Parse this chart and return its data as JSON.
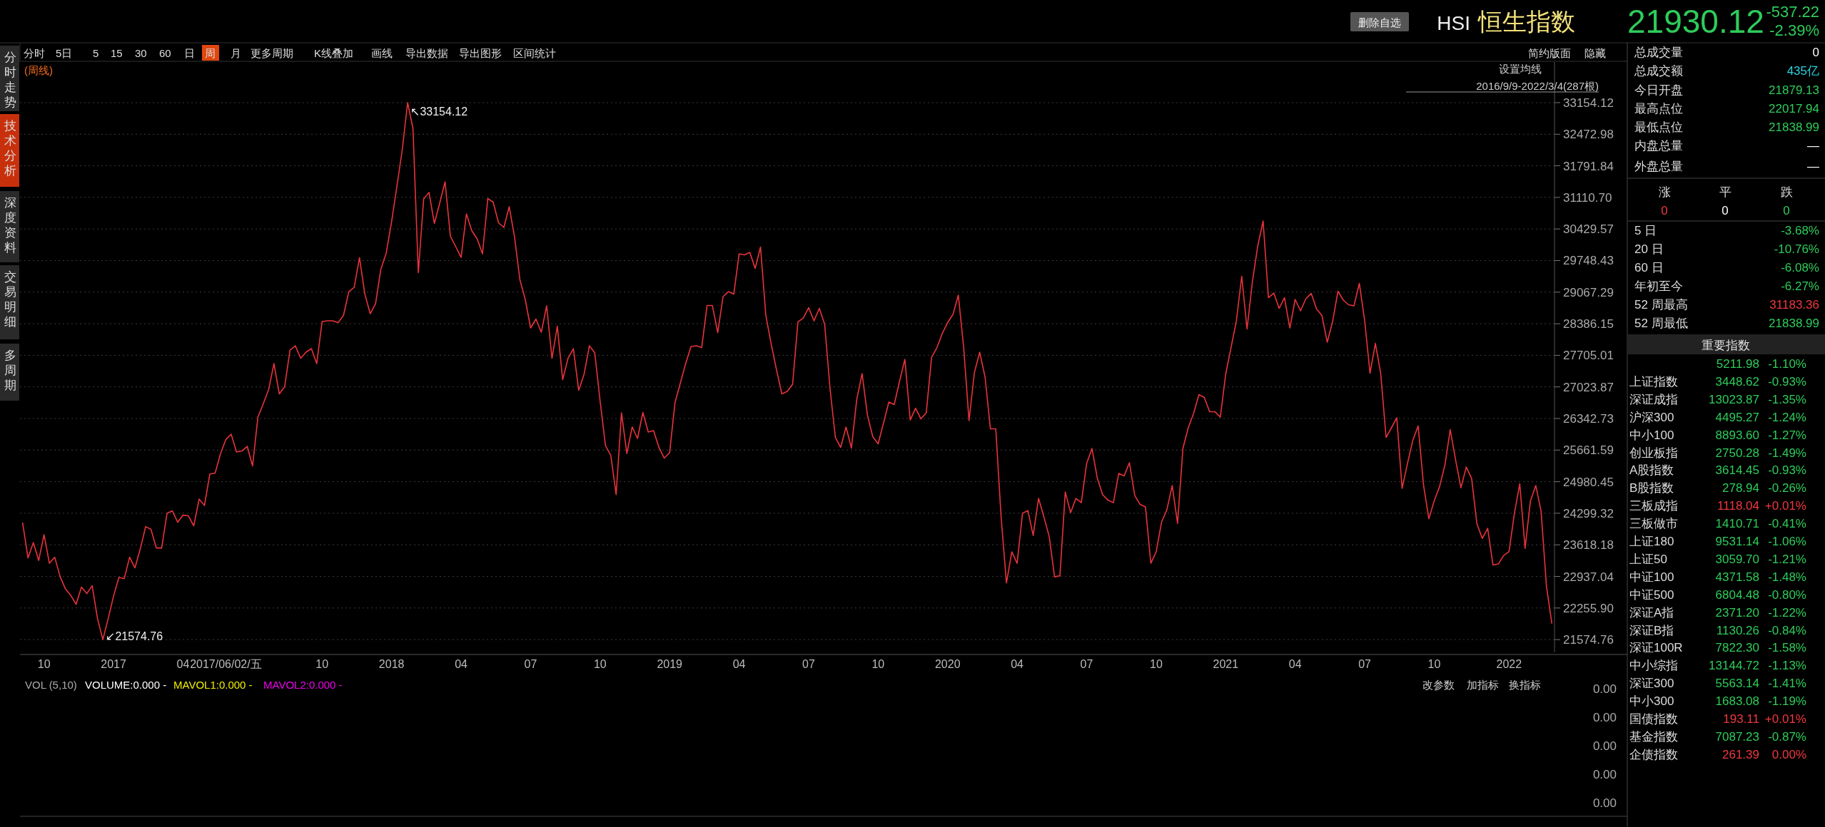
{
  "chart_data": [
    {
      "type": "line",
      "color": "#e8333b",
      "grid": "y",
      "categories": [
        null,
        null,
        null,
        null,
        "10",
        null,
        null,
        null,
        null,
        null,
        null,
        null,
        null,
        null,
        null,
        null,
        null,
        "2017",
        null,
        null,
        null,
        null,
        null,
        null,
        null,
        null,
        null,
        null,
        null,
        null,
        "04",
        null,
        null,
        null,
        null,
        null,
        null,
        null,
        "2017/06/02/五",
        null,
        null,
        null,
        null,
        null,
        null,
        null,
        null,
        null,
        null,
        null,
        null,
        null,
        null,
        null,
        null,
        null,
        "10",
        null,
        null,
        null,
        null,
        null,
        null,
        null,
        null,
        null,
        null,
        null,
        null,
        "2018",
        null,
        null,
        null,
        null,
        null,
        null,
        null,
        null,
        null,
        null,
        null,
        null,
        "04",
        null,
        null,
        null,
        null,
        null,
        null,
        null,
        null,
        null,
        null,
        null,
        null,
        "07",
        null,
        null,
        null,
        null,
        null,
        null,
        null,
        null,
        null,
        null,
        null,
        null,
        "10",
        null,
        null,
        null,
        null,
        null,
        null,
        null,
        null,
        null,
        null,
        null,
        null,
        "2019",
        null,
        null,
        null,
        null,
        null,
        null,
        null,
        null,
        null,
        null,
        null,
        null,
        "04",
        null,
        null,
        null,
        null,
        null,
        null,
        null,
        null,
        null,
        null,
        null,
        null,
        "07",
        null,
        null,
        null,
        null,
        null,
        null,
        null,
        null,
        null,
        null,
        null,
        null,
        "10",
        null,
        null,
        null,
        null,
        null,
        null,
        null,
        null,
        null,
        null,
        null,
        null,
        "2020",
        null,
        null,
        null,
        null,
        null,
        null,
        null,
        null,
        null,
        null,
        null,
        null,
        "04",
        null,
        null,
        null,
        null,
        null,
        null,
        null,
        null,
        null,
        null,
        null,
        null,
        "07",
        null,
        null,
        null,
        null,
        null,
        null,
        null,
        null,
        null,
        null,
        null,
        null,
        "10",
        null,
        null,
        null,
        null,
        null,
        null,
        null,
        null,
        null,
        null,
        null,
        null,
        "2021",
        null,
        null,
        null,
        null,
        null,
        null,
        null,
        null,
        null,
        null,
        null,
        null,
        "04",
        null,
        null,
        null,
        null,
        null,
        null,
        null,
        null,
        null,
        null,
        null,
        null,
        "07",
        null,
        null,
        null,
        null,
        null,
        null,
        null,
        null,
        null,
        null,
        null,
        null,
        "10",
        null,
        null,
        null,
        null,
        null,
        null,
        null,
        null,
        null,
        null,
        null,
        null,
        null,
        "2022",
        null,
        null,
        null,
        null,
        null,
        null,
        null,
        null
      ],
      "values": [
        24089,
        23336,
        23666,
        23282,
        23836,
        23221,
        23351,
        22936,
        22667,
        22529,
        22337,
        22705,
        22567,
        22736,
        22029,
        21574.76,
        22029,
        22513,
        22913,
        22890,
        23351,
        23121,
        23528,
        24012,
        23951,
        23551,
        23551,
        24297,
        24351,
        24105,
        24258,
        24243,
        24028,
        24604,
        24466,
        25143,
        25166,
        25581,
        25888,
        26004,
        25619,
        25642,
        25742,
        25320,
        26373,
        26657,
        26965,
        27526,
        26873,
        27026,
        27818,
        27911,
        27641,
        27772,
        27849,
        27526,
        28433,
        28448,
        28448,
        28410,
        28564,
        29079,
        29171,
        29810,
        29025,
        28602,
        28818,
        29564,
        29910,
        30586,
        31355,
        32139,
        33154.12,
        32600,
        29487,
        31078,
        31217,
        30548,
        30986,
        31447,
        30271,
        30048,
        29817,
        30755,
        30394,
        30217,
        29894,
        31086,
        31009,
        30563,
        30463,
        30909,
        30256,
        29333,
        28910,
        28295,
        28487,
        28202,
        28772,
        27641,
        28333,
        27180,
        27641,
        27849,
        26949,
        27296,
        27911,
        27757,
        26719,
        25758,
        25550,
        24704,
        26465,
        25589,
        26158,
        25912,
        26473,
        26050,
        26081,
        25719,
        25489,
        25604,
        26680,
        27103,
        27526,
        27895,
        27911,
        27872,
        28779,
        28779,
        28195,
        28972,
        29079,
        29025,
        29894,
        29871,
        29925,
        29579,
        30040,
        28564,
        27949,
        27387,
        26873,
        26926,
        27080,
        28425,
        28510,
        28733,
        28448,
        28718,
        28372,
        26988,
        25935,
        25719,
        26158,
        25704,
        26757,
        27311,
        26411,
        25950,
        25796,
        26242,
        26696,
        26642,
        27142,
        27618,
        26311,
        26565,
        26334,
        26465,
        27664,
        27872,
        28179,
        28410,
        28587,
        29002,
        27872,
        26296,
        27334,
        27772,
        27234,
        26119,
        26119,
        24220,
        22797,
        23466,
        23221,
        24297,
        24358,
        23820,
        24620,
        24220,
        23797,
        22928,
        22951,
        24758,
        24312,
        24620,
        24527,
        25373,
        25696,
        25050,
        24697,
        24581,
        24527,
        25158,
        25104,
        25389,
        24681,
        24489,
        24435,
        23221,
        23466,
        24105,
        24374,
        24896,
        24082,
        25696,
        26143,
        26450,
        26857,
        26796,
        26488,
        26488,
        26373,
        27296,
        27872,
        28448,
        29410,
        28272,
        29295,
        30063,
        30601,
        28948,
        29048,
        28718,
        28948,
        28295,
        28910,
        28664,
        28925,
        29040,
        28702,
        28564,
        27987,
        28433,
        29087,
        28895,
        28795,
        28772,
        29256,
        28448,
        27319,
        27964,
        27311,
        25935,
        26143,
        26358,
        24835,
        25373,
        25873,
        26181,
        24912,
        24181,
        24566,
        24873,
        25335,
        26104,
        25450,
        24850,
        25296,
        25050,
        24066,
        23758,
        23974,
        23182,
        23205,
        23389,
        23474,
        24297,
        24935,
        23543,
        24566,
        24896,
        24335,
        22721,
        21930.12
      ],
      "ylim": [
        21300,
        34030
      ],
      "yticks": [
        21574.76,
        {
          "value": 22255.9,
          "label": "22255.90"
        },
        22937.04,
        23618.18,
        24299.32,
        24980.45,
        25661.59,
        26342.73,
        27023.87,
        27705.01,
        28386.15,
        29067.29,
        29748.43,
        30429.57,
        {
          "value": 31110.7,
          "label": "31110.70"
        },
        31791.84,
        32472.98,
        33154.12
      ],
      "annotations": [
        "↖33154.12",
        "↙21574.76",
        "(周线)",
        "设置均线",
        "2016/9/9-2022/3/4(287根)"
      ]
    },
    {
      "type": "other",
      "title": "VOL (5,10)",
      "annotations": [
        "VOLUME:0.000 -",
        "MAVOL1:0.000 -",
        "MAVOL2:0.000 -",
        "改参数",
        "加指标",
        "换指标",
        "0.00",
        "0.00",
        "0.00",
        "0.00",
        "0.00"
      ]
    },
    {
      "type": "other",
      "title": "恒生指数",
      "subtitle": "HSI",
      "annotations": [
        "删除自选",
        "21930.12",
        "-537.22",
        "-2.39%"
      ]
    },
    {
      "type": "other",
      "annotations": [
        "分时",
        "5日",
        "5",
        "15",
        "30",
        "60",
        "日",
        "周",
        "月",
        "更多周期",
        "K线叠加",
        "画线",
        "导出数据",
        "导出图形",
        "区间统计",
        "简约版面",
        "隐藏",
        "分时走势",
        "技术分析",
        "深度资料",
        "交易明细",
        "多周期"
      ]
    },
    {
      "type": "other",
      "title": "重要指数",
      "annotations": [
        "总成交量",
        "0",
        "总成交额",
        "435亿",
        "今日开盘",
        "21879.13",
        "最高点位",
        "22017.94",
        "最低点位",
        "21838.99",
        "内盘总量",
        "—",
        "外盘总量",
        "—",
        "涨",
        "平",
        "跌",
        "0",
        "0",
        "0",
        "5 日",
        "-3.68%",
        "20 日",
        "-10.76%",
        "60 日",
        "-6.08%",
        "年初至今",
        "-6.27%",
        "52 周最高",
        "31183.36",
        "52 周最低",
        "21838.99",
        "5211.98",
        "-1.10%",
        "上证指数",
        "3448.62",
        "-0.93%",
        "深证成指",
        "13023.87",
        "-1.35%",
        "沪深300",
        "4495.27",
        "-1.24%",
        "中小100",
        "8893.60",
        "-1.27%",
        "创业板指",
        "2750.28",
        "-1.49%",
        "A股指数",
        "3614.45",
        "-0.93%",
        "B股指数",
        "278.94",
        "-0.26%",
        "三板成指",
        "1118.04",
        "+0.01%",
        "三板做市",
        "1410.71",
        "-0.41%",
        "上证180",
        "9531.14",
        "-1.06%",
        "上证50",
        "3059.70",
        "-1.21%",
        "中证100",
        "4371.58",
        "-1.48%",
        "中证500",
        "6804.48",
        "-0.80%",
        "深证A指",
        "2371.20",
        "-1.22%",
        "深证B指",
        "1130.26",
        "-0.84%",
        "深证100R",
        "7822.30",
        "-1.58%",
        "中小综指",
        "13144.72",
        "-1.13%",
        "深证300",
        "5563.14",
        "-1.41%",
        "中小300",
        "1683.08",
        "-1.19%",
        "国债指数",
        "193.11",
        "+0.01%",
        "基金指数",
        "7087.23",
        "-0.87%",
        "企债指数",
        "261.39",
        "0.00%"
      ]
    }
  ]
}
